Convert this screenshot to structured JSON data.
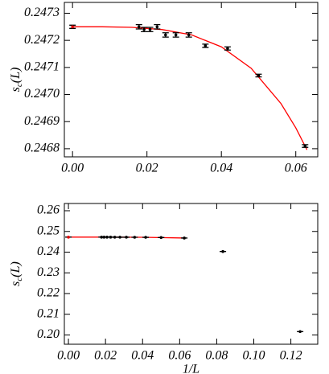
{
  "chart_data": [
    {
      "type": "errorbar",
      "ylabel": {
        "base": "s",
        "sub": "c",
        "rest": "(L)"
      },
      "xlim": [
        -0.0022,
        0.0659
      ],
      "ylim": [
        0.24677,
        0.24734
      ],
      "xticks": [
        {
          "value": 0,
          "label": "0.00"
        },
        0.02,
        0.04,
        0.06
      ],
      "yticks": [
        {
          "value": 0.2468,
          "label": "0.2468"
        },
        0.2469,
        {
          "value": 0.247,
          "label": "0.2470"
        },
        0.2471,
        0.2472,
        0.2473
      ],
      "points": {
        "color": "#000000",
        "x": [
          0.01786,
          0.01923,
          0.02083,
          0.02273,
          0.025,
          0.02778,
          0.03125,
          0.03571,
          0.04167,
          0.05,
          0.0625
        ],
        "values": [
          0.24725,
          0.24724,
          0.24724,
          0.24725,
          0.24722,
          0.24722,
          0.24722,
          0.24718,
          0.24717,
          0.24707,
          0.24681
        ],
        "errors": [
          8e-06,
          8e-06,
          8e-06,
          8e-06,
          8e-06,
          8e-06,
          8e-06,
          6e-06,
          6e-06,
          5e-06,
          5e-06
        ]
      },
      "extrapolated": {
        "color": "#e00000",
        "x": [
          0
        ],
        "values": [
          0.24725
        ],
        "errors": [
          6e-06
        ]
      },
      "fit": {
        "color": "#ff0000",
        "x": [
          0,
          0.008,
          0.016,
          0.024,
          0.032,
          0.04,
          0.048,
          0.056,
          0.06,
          0.063
        ],
        "values": [
          0.24725,
          0.24725,
          0.247248,
          0.24724,
          0.24722,
          0.247176,
          0.247097,
          0.246967,
          0.246877,
          0.246796
        ]
      }
    },
    {
      "type": "errorbar",
      "ylabel": {
        "base": "s",
        "sub": "c",
        "rest": "(L)"
      },
      "xlabel": "1/L",
      "xlim": [
        -0.0022,
        0.1345
      ],
      "ylim": [
        0.1955,
        0.2635
      ],
      "xticks": [
        {
          "value": 0,
          "label": "0.00"
        },
        0.02,
        0.04,
        0.06,
        0.08,
        {
          "value": 0.1,
          "label": "0.10"
        },
        0.12
      ],
      "yticks": [
        {
          "value": 0.2,
          "label": "0.20"
        },
        0.21,
        0.22,
        0.23,
        0.24,
        0.25,
        0.26
      ],
      "points": {
        "color": "#000000",
        "x": [
          0.01786,
          0.01923,
          0.02083,
          0.02273,
          0.025,
          0.02778,
          0.03125,
          0.03571,
          0.04167,
          0.05,
          0.0625,
          0.08333,
          0.125
        ],
        "values": [
          0.24725,
          0.24724,
          0.24724,
          0.24725,
          0.24722,
          0.24722,
          0.24722,
          0.24718,
          0.24717,
          0.24707,
          0.24681,
          0.2403,
          0.2016
        ],
        "errors": [
          1e-05,
          1e-05,
          1e-05,
          1e-05,
          1e-05,
          1e-05,
          1e-05,
          1e-05,
          1e-05,
          1e-05,
          1e-05,
          2e-05,
          2e-05
        ]
      },
      "extrapolated": {
        "color": "#e00000",
        "x": [
          0
        ],
        "values": [
          0.24725
        ],
        "errors": [
          1e-05
        ]
      },
      "fit": {
        "color": "#ff0000",
        "x": [
          0,
          0.02,
          0.04,
          0.0625
        ],
        "values": [
          0.24725,
          0.247245,
          0.247176,
          0.24681
        ]
      }
    }
  ]
}
